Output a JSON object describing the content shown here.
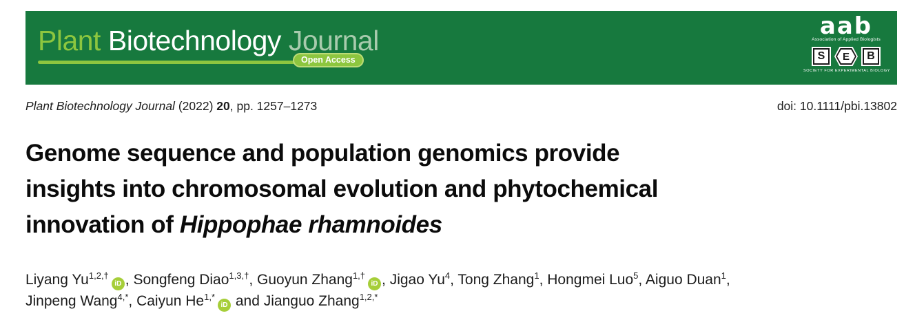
{
  "colors": {
    "banner_green": "#17793E",
    "light_green": "#8DC63F",
    "journal_word": "#A8CBAD",
    "pill_border": "#BCDC77",
    "orcid_green": "#A6CE39"
  },
  "banner": {
    "journal_name": {
      "part1": "Plant",
      "part2": "Biotechnology",
      "part3": "Journal"
    },
    "open_access_label": "Open Access",
    "aab_logo": {
      "text": "aab",
      "subtitle": "Association of Applied Biologists"
    },
    "seb_logo": {
      "letter_s": "S",
      "letter_e": "E",
      "letter_b": "B",
      "subtitle": "SOCIETY FOR EXPERIMENTAL BIOLOGY"
    }
  },
  "citation": {
    "journal_italic": "Plant Biotechnology Journal",
    "year": "(2022)",
    "volume": "20",
    "pages": ", pp. 1257–1273",
    "doi": "doi: 10.1111/pbi.13802"
  },
  "title": {
    "line1": "Genome sequence and population genomics provide",
    "line2": "insights into chromosomal evolution and phytochemical",
    "line3_prefix": "innovation of ",
    "line3_species": "Hippophae rhamnoides"
  },
  "authors": {
    "orcid_label": "iD",
    "and_separator": " and ",
    "comma_separator": ", ",
    "list": [
      {
        "name": "Liyang Yu",
        "sup": "1,2,†",
        "orcid": true,
        "break_after": false
      },
      {
        "name": "Songfeng Diao",
        "sup": "1,3,†",
        "orcid": false,
        "break_after": false
      },
      {
        "name": "Guoyun Zhang",
        "sup": "1,†",
        "orcid": true,
        "break_after": false
      },
      {
        "name": "Jigao Yu",
        "sup": "4",
        "orcid": false,
        "break_after": false
      },
      {
        "name": "Tong Zhang",
        "sup": "1",
        "orcid": false,
        "break_after": false
      },
      {
        "name": "Hongmei Luo",
        "sup": "5",
        "orcid": false,
        "break_after": false
      },
      {
        "name": "Aiguo Duan",
        "sup": "1",
        "orcid": false,
        "break_after": true
      },
      {
        "name": "Jinpeng Wang",
        "sup": "4,*",
        "orcid": false,
        "break_after": false
      },
      {
        "name": "Caiyun He",
        "sup": "1,*",
        "orcid": true,
        "break_after": false
      },
      {
        "name": "Jianguo Zhang",
        "sup": "1,2,*",
        "orcid": false,
        "break_after": false
      }
    ]
  }
}
